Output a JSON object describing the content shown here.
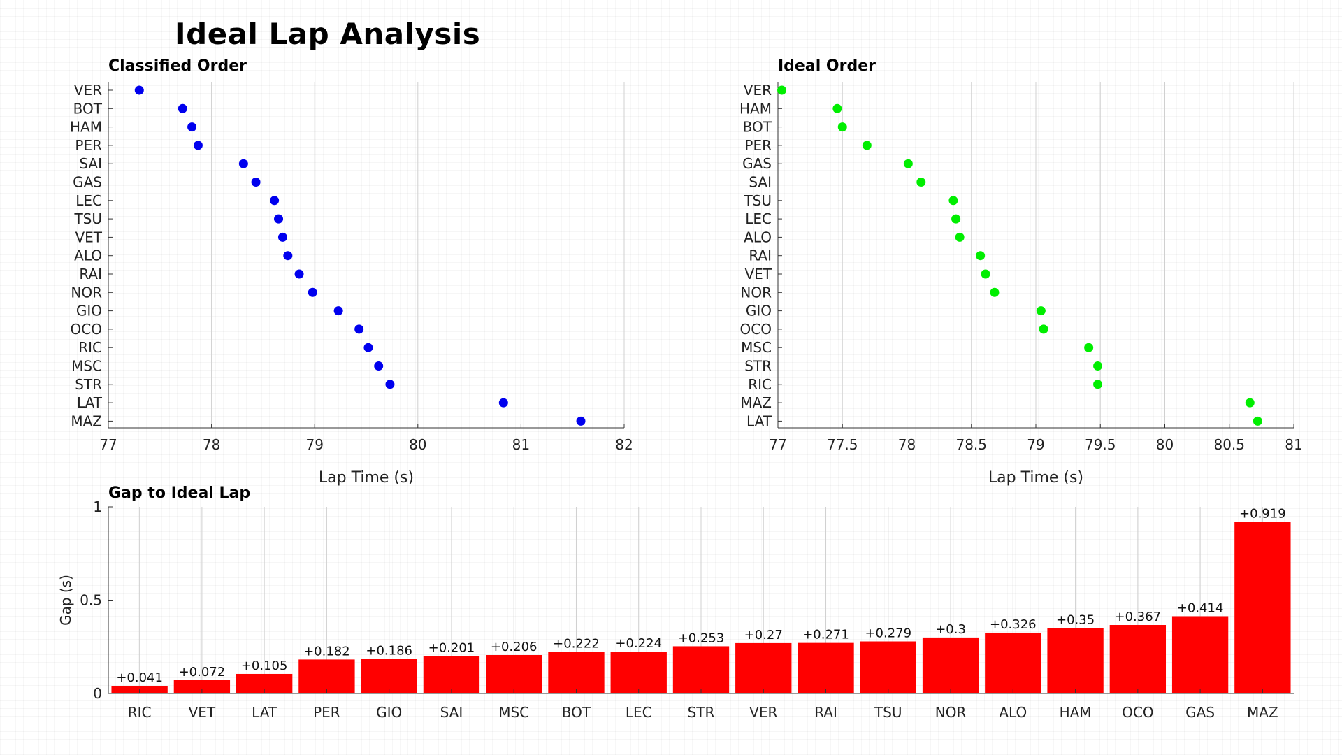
{
  "title": "Ideal Lap Analysis",
  "colors": {
    "classified": "#0000ee",
    "ideal": "#00ee00",
    "gap": "#ff0000"
  },
  "chart_data": [
    {
      "type": "scatter",
      "title": "Classified Order",
      "xlabel": "Lap Time (s)",
      "ylabel": "",
      "xlim": [
        77,
        82
      ],
      "xticks": [
        "77",
        "78",
        "79",
        "80",
        "81",
        "82"
      ],
      "categories": [
        "VER",
        "BOT",
        "HAM",
        "PER",
        "SAI",
        "GAS",
        "LEC",
        "TSU",
        "VET",
        "ALO",
        "RAI",
        "NOR",
        "GIO",
        "OCO",
        "RIC",
        "MSC",
        "STR",
        "LAT",
        "MAZ"
      ],
      "values": [
        77.3,
        77.72,
        77.81,
        77.87,
        78.31,
        78.43,
        78.61,
        78.65,
        78.69,
        78.74,
        78.85,
        78.98,
        79.23,
        79.43,
        79.52,
        79.62,
        79.73,
        80.83,
        81.58
      ]
    },
    {
      "type": "scatter",
      "title": "Ideal Order",
      "xlabel": "Lap Time (s)",
      "ylabel": "",
      "xlim": [
        77,
        81
      ],
      "xticks": [
        "77",
        "77.5",
        "78",
        "78.5",
        "79",
        "79.5",
        "80",
        "80.5",
        "81"
      ],
      "categories": [
        "VER",
        "HAM",
        "BOT",
        "PER",
        "GAS",
        "SAI",
        "TSU",
        "LEC",
        "ALO",
        "RAI",
        "VET",
        "NOR",
        "GIO",
        "OCO",
        "MSC",
        "STR",
        "RIC",
        "MAZ",
        "LAT"
      ],
      "values": [
        77.03,
        77.46,
        77.5,
        77.69,
        78.01,
        78.11,
        78.36,
        78.38,
        78.41,
        78.57,
        78.61,
        78.68,
        79.04,
        79.06,
        79.41,
        79.48,
        79.48,
        80.66,
        80.72
      ]
    },
    {
      "type": "bar",
      "title": "Gap to Ideal Lap",
      "xlabel": "",
      "ylabel": "Gap (s)",
      "ylim": [
        0,
        1
      ],
      "yticks": [
        "0",
        "0.5",
        "1"
      ],
      "categories": [
        "RIC",
        "VET",
        "LAT",
        "PER",
        "GIO",
        "SAI",
        "MSC",
        "BOT",
        "LEC",
        "STR",
        "VER",
        "RAI",
        "TSU",
        "NOR",
        "ALO",
        "HAM",
        "OCO",
        "GAS",
        "MAZ"
      ],
      "values": [
        0.041,
        0.072,
        0.105,
        0.182,
        0.186,
        0.201,
        0.206,
        0.222,
        0.224,
        0.253,
        0.27,
        0.271,
        0.279,
        0.3,
        0.326,
        0.35,
        0.367,
        0.414,
        0.919
      ],
      "labels": [
        "+0.041",
        "+0.072",
        "+0.105",
        "+0.182",
        "+0.186",
        "+0.201",
        "+0.206",
        "+0.222",
        "+0.224",
        "+0.253",
        "+0.27",
        "+0.271",
        "+0.279",
        "+0.3",
        "+0.326",
        "+0.35",
        "+0.367",
        "+0.414",
        "+0.919"
      ]
    }
  ]
}
